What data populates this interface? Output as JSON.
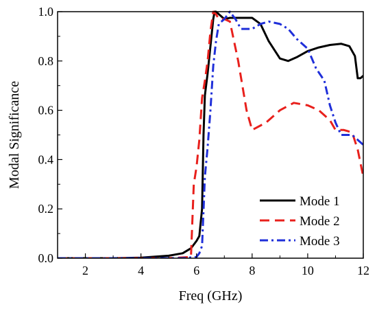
{
  "chart_data": {
    "type": "line",
    "title": "",
    "xlabel": "Freq (GHz)",
    "ylabel": "Modal Significance",
    "xlim": [
      1,
      12
    ],
    "ylim": [
      0,
      1.0
    ],
    "xticks": [
      2,
      4,
      6,
      8,
      10,
      12
    ],
    "yticks": [
      0.0,
      0.2,
      0.4,
      0.6,
      0.8,
      1.0
    ],
    "xtick_labels": [
      "2",
      "4",
      "6",
      "8",
      "10",
      "12"
    ],
    "ytick_labels": [
      "0.0",
      "0.2",
      "0.4",
      "0.6",
      "0.8",
      "1.0"
    ],
    "grid": false,
    "legend_position": "bottom-right",
    "series": [
      {
        "name": "Mode 1",
        "color": "#000000",
        "dash": "solid",
        "x": [
          1.0,
          3.0,
          4.0,
          5.0,
          5.5,
          5.8,
          6.0,
          6.1,
          6.2,
          6.25,
          6.3,
          6.4,
          6.5,
          6.6,
          6.65,
          6.7,
          6.8,
          7.0,
          7.2,
          7.5,
          8.0,
          8.3,
          8.6,
          9.0,
          9.3,
          9.6,
          10.0,
          10.4,
          10.8,
          11.2,
          11.5,
          11.7,
          11.8,
          11.9,
          12.0
        ],
        "y": [
          0.0,
          0.0,
          0.002,
          0.01,
          0.02,
          0.04,
          0.07,
          0.09,
          0.2,
          0.5,
          0.66,
          0.75,
          0.86,
          0.97,
          1.0,
          1.0,
          0.99,
          0.97,
          0.975,
          0.975,
          0.975,
          0.95,
          0.88,
          0.81,
          0.8,
          0.815,
          0.84,
          0.855,
          0.865,
          0.87,
          0.86,
          0.82,
          0.73,
          0.73,
          0.74
        ]
      },
      {
        "name": "Mode 2",
        "color": "#e8201c",
        "dash": "dashed",
        "x": [
          1.0,
          4.0,
          5.0,
          5.8,
          5.9,
          6.0,
          6.1,
          6.2,
          6.3,
          6.4,
          6.5,
          6.6,
          6.7,
          6.8,
          7.0,
          7.2,
          7.5,
          7.8,
          8.0,
          8.5,
          9.0,
          9.5,
          10.0,
          10.4,
          10.8,
          11.0,
          11.3,
          11.6,
          11.8,
          12.0
        ],
        "y": [
          0.0,
          0.0,
          0.0,
          0.005,
          0.3,
          0.37,
          0.48,
          0.65,
          0.72,
          0.8,
          0.92,
          1.0,
          0.99,
          0.97,
          0.97,
          0.96,
          0.8,
          0.6,
          0.52,
          0.55,
          0.6,
          0.63,
          0.62,
          0.6,
          0.56,
          0.52,
          0.52,
          0.51,
          0.44,
          0.33
        ]
      },
      {
        "name": "Mode 3",
        "color": "#1f2fd9",
        "dash": "dashdot",
        "x": [
          1.0,
          4.0,
          5.5,
          6.0,
          6.1,
          6.2,
          6.3,
          6.4,
          6.5,
          6.6,
          6.7,
          6.8,
          7.0,
          7.2,
          7.4,
          7.6,
          8.0,
          8.3,
          8.6,
          9.0,
          9.3,
          9.6,
          10.0,
          10.3,
          10.6,
          10.8,
          11.0,
          11.2,
          11.4,
          11.6,
          11.8,
          12.0
        ],
        "y": [
          0.0,
          0.0,
          0.0,
          0.005,
          0.02,
          0.05,
          0.33,
          0.45,
          0.6,
          0.78,
          0.88,
          0.95,
          0.97,
          1.0,
          0.97,
          0.93,
          0.93,
          0.95,
          0.96,
          0.95,
          0.93,
          0.89,
          0.85,
          0.77,
          0.72,
          0.62,
          0.55,
          0.5,
          0.5,
          0.5,
          0.48,
          0.46
        ]
      }
    ]
  }
}
